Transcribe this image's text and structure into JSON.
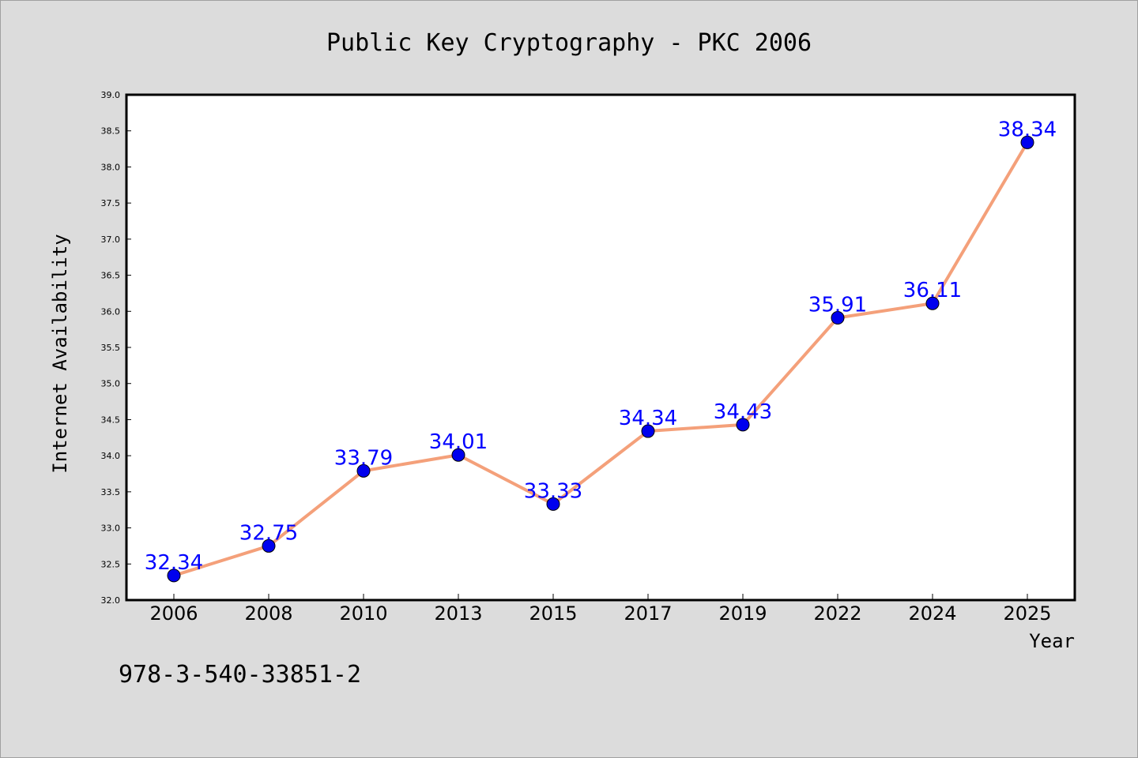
{
  "chart_data": {
    "type": "line",
    "title": "Public Key Cryptography - PKC 2006",
    "xlabel": "Year",
    "ylabel": "Internet Availability",
    "categories": [
      "2006",
      "2008",
      "2010",
      "2013",
      "2015",
      "2017",
      "2019",
      "2022",
      "2024",
      "2025"
    ],
    "series": [
      {
        "values": [
          32.34,
          32.75,
          33.79,
          34.01,
          33.33,
          34.34,
          34.43,
          35.91,
          36.11,
          38.34
        ],
        "labels": [
          "32.34",
          "32.75",
          "33.79",
          "34.01",
          "33.33",
          "34.34",
          "34.43",
          "35.91",
          "36.11",
          "38.34"
        ],
        "line_color": "#f4a07a",
        "marker_color": "#0000ee"
      }
    ],
    "ylim": [
      32.0,
      39.0
    ],
    "yticks": [
      "32.0",
      "32.5",
      "33.0",
      "33.5",
      "34.0",
      "34.5",
      "35.0",
      "35.5",
      "36.0",
      "36.5",
      "37.0",
      "37.5",
      "38.0",
      "38.5",
      "39.0"
    ],
    "label_color": "#0000ff",
    "grid": false,
    "legend": "none"
  },
  "footer_text": "978-3-540-33851-2"
}
